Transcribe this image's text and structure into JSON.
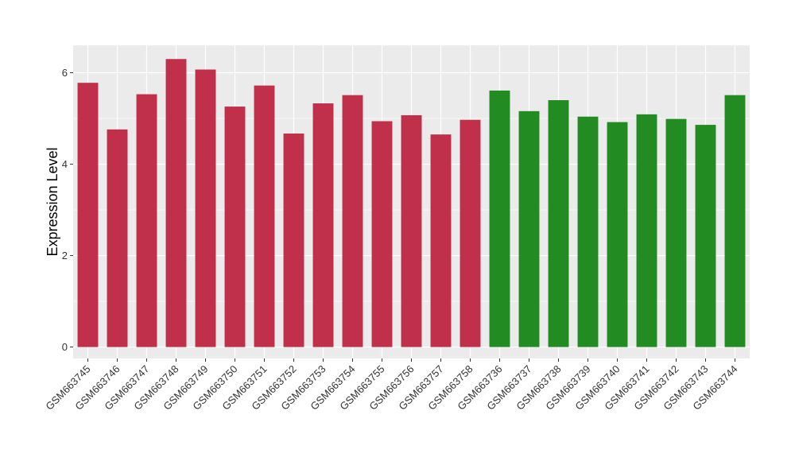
{
  "chart_data": {
    "type": "bar",
    "ylabel": "Expression Level",
    "xlabel": "",
    "ylim": [
      -0.25,
      6.6
    ],
    "yticks": [
      0,
      2,
      4,
      6
    ],
    "grid": true,
    "legend": "none",
    "panel_color": "#EBEBEB",
    "categories": [
      "GSM663745",
      "GSM663746",
      "GSM663747",
      "GSM663748",
      "GSM663749",
      "GSM663750",
      "GSM663751",
      "GSM663752",
      "GSM663753",
      "GSM663754",
      "GSM663755",
      "GSM663756",
      "GSM663757",
      "GSM663758",
      "GSM663736",
      "GSM663737",
      "GSM663738",
      "GSM663739",
      "GSM663740",
      "GSM663741",
      "GSM663742",
      "GSM663743",
      "GSM663744"
    ],
    "values": [
      5.78,
      4.76,
      5.53,
      6.3,
      6.07,
      5.26,
      5.72,
      4.67,
      5.33,
      5.51,
      4.94,
      5.07,
      4.65,
      4.97,
      5.61,
      5.16,
      5.4,
      5.04,
      4.92,
      5.09,
      4.99,
      4.86,
      5.51
    ],
    "colors": [
      "#C1304A",
      "#C1304A",
      "#C1304A",
      "#C1304A",
      "#C1304A",
      "#C1304A",
      "#C1304A",
      "#C1304A",
      "#C1304A",
      "#C1304A",
      "#C1304A",
      "#C1304A",
      "#C1304A",
      "#C1304A",
      "#228B22",
      "#228B22",
      "#228B22",
      "#228B22",
      "#228B22",
      "#228B22",
      "#228B22",
      "#228B22",
      "#228B22"
    ]
  }
}
